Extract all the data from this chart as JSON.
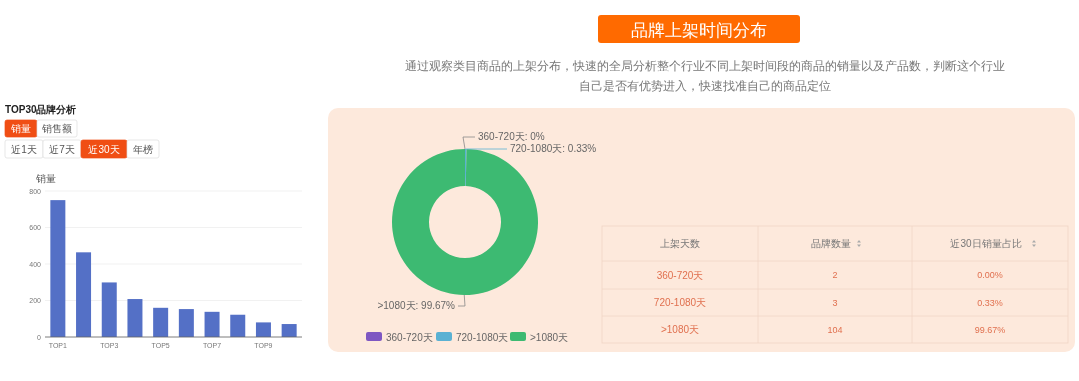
{
  "chart_data": [
    {
      "type": "bar",
      "title": "TOP30品牌分析",
      "ylabel": "销量",
      "categories": [
        "TOP1",
        null,
        "TOP3",
        null,
        "TOP5",
        null,
        "TOP7",
        null,
        "TOP9",
        null
      ],
      "values": [
        750,
        464,
        299,
        208,
        160,
        153,
        138,
        122,
        80,
        71
      ],
      "color": "#5470c6",
      "ylim": [
        0,
        800
      ],
      "yticks": [
        0,
        200,
        400,
        600,
        800
      ],
      "grid": "y",
      "annotations": [
        "销量",
        "销售额",
        "近1天",
        "近7天",
        "近30天",
        "年榜"
      ]
    },
    {
      "type": "donut",
      "title": "品牌上架时间分布",
      "subtitle": "通过观察类目商品的上架分布，快速的全局分析整个行业不同上架时间段的商品的销量以及产品数，判断这个行业",
      "annotations": [
        "自己是否有优势进入，快速找准自己的商品定位"
      ],
      "categories": [
        "360-720天",
        "720-1080天",
        ">1080天"
      ],
      "values": [
        0,
        0.33,
        99.67
      ],
      "colors": [
        "#7e57c2",
        "#5ab1d3",
        "#3dba72"
      ],
      "value_labels": [
        "360-720天: 0%",
        "720-1080天: 0.33%",
        ">1080天: 99.67%"
      ],
      "legend": "bottom"
    },
    {
      "type": "other",
      "xlabel": "上架天数",
      "data_labels": true,
      "categories": [
        "360-720天",
        "720-1080天",
        ">1080天"
      ],
      "series": [
        {
          "name": "品牌数量",
          "values": [
            2,
            3,
            104
          ]
        },
        {
          "name": "近30日销量占比",
          "values": [
            0,
            0.33,
            99.67
          ],
          "value_labels": [
            "0.00%",
            "0.33%",
            "99.67%"
          ]
        }
      ]
    }
  ]
}
